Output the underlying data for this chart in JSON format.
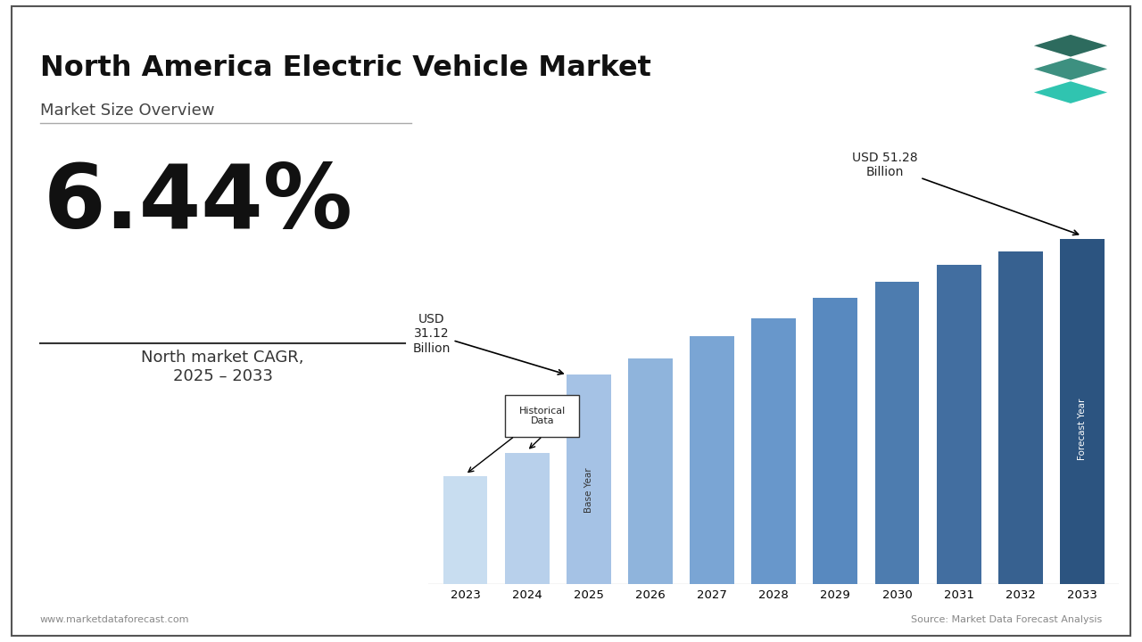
{
  "title": "North America Electric Vehicle Market",
  "subtitle": "Market Size Overview",
  "cagr": "6.44%",
  "cagr_label": "North market CAGR,\n2025 – 2033",
  "years": [
    2023,
    2024,
    2025,
    2026,
    2027,
    2028,
    2029,
    2030,
    2031,
    2032,
    2033
  ],
  "values": [
    16.0,
    19.5,
    31.12,
    33.5,
    36.8,
    39.5,
    42.5,
    45.0,
    47.5,
    49.5,
    51.28
  ],
  "base_year_idx": 2,
  "forecast_last_idx": 10,
  "start_value_label": "USD\n31.12\nBillion",
  "end_value_label": "USD 51.28\nBillion",
  "historical_box_label": "Historical\nData",
  "base_year_label": "Base Year",
  "forecast_year_label": "Forecast Year",
  "footer_left": "www.marketdataforecast.com",
  "footer_right": "Source: Market Data Forecast Analysis",
  "background_color": "#ffffff",
  "bar_colors": [
    "#c8ddf0",
    "#b8d0eb",
    "#a5c2e5",
    "#8fb4dc",
    "#7aa5d4",
    "#6897cb",
    "#5889bf",
    "#4d7caf",
    "#426ea0",
    "#376190",
    "#2c5480"
  ],
  "teal_dark": "#2d6b5e",
  "teal_mid": "#3d9080",
  "teal_light": "#30c4b0"
}
